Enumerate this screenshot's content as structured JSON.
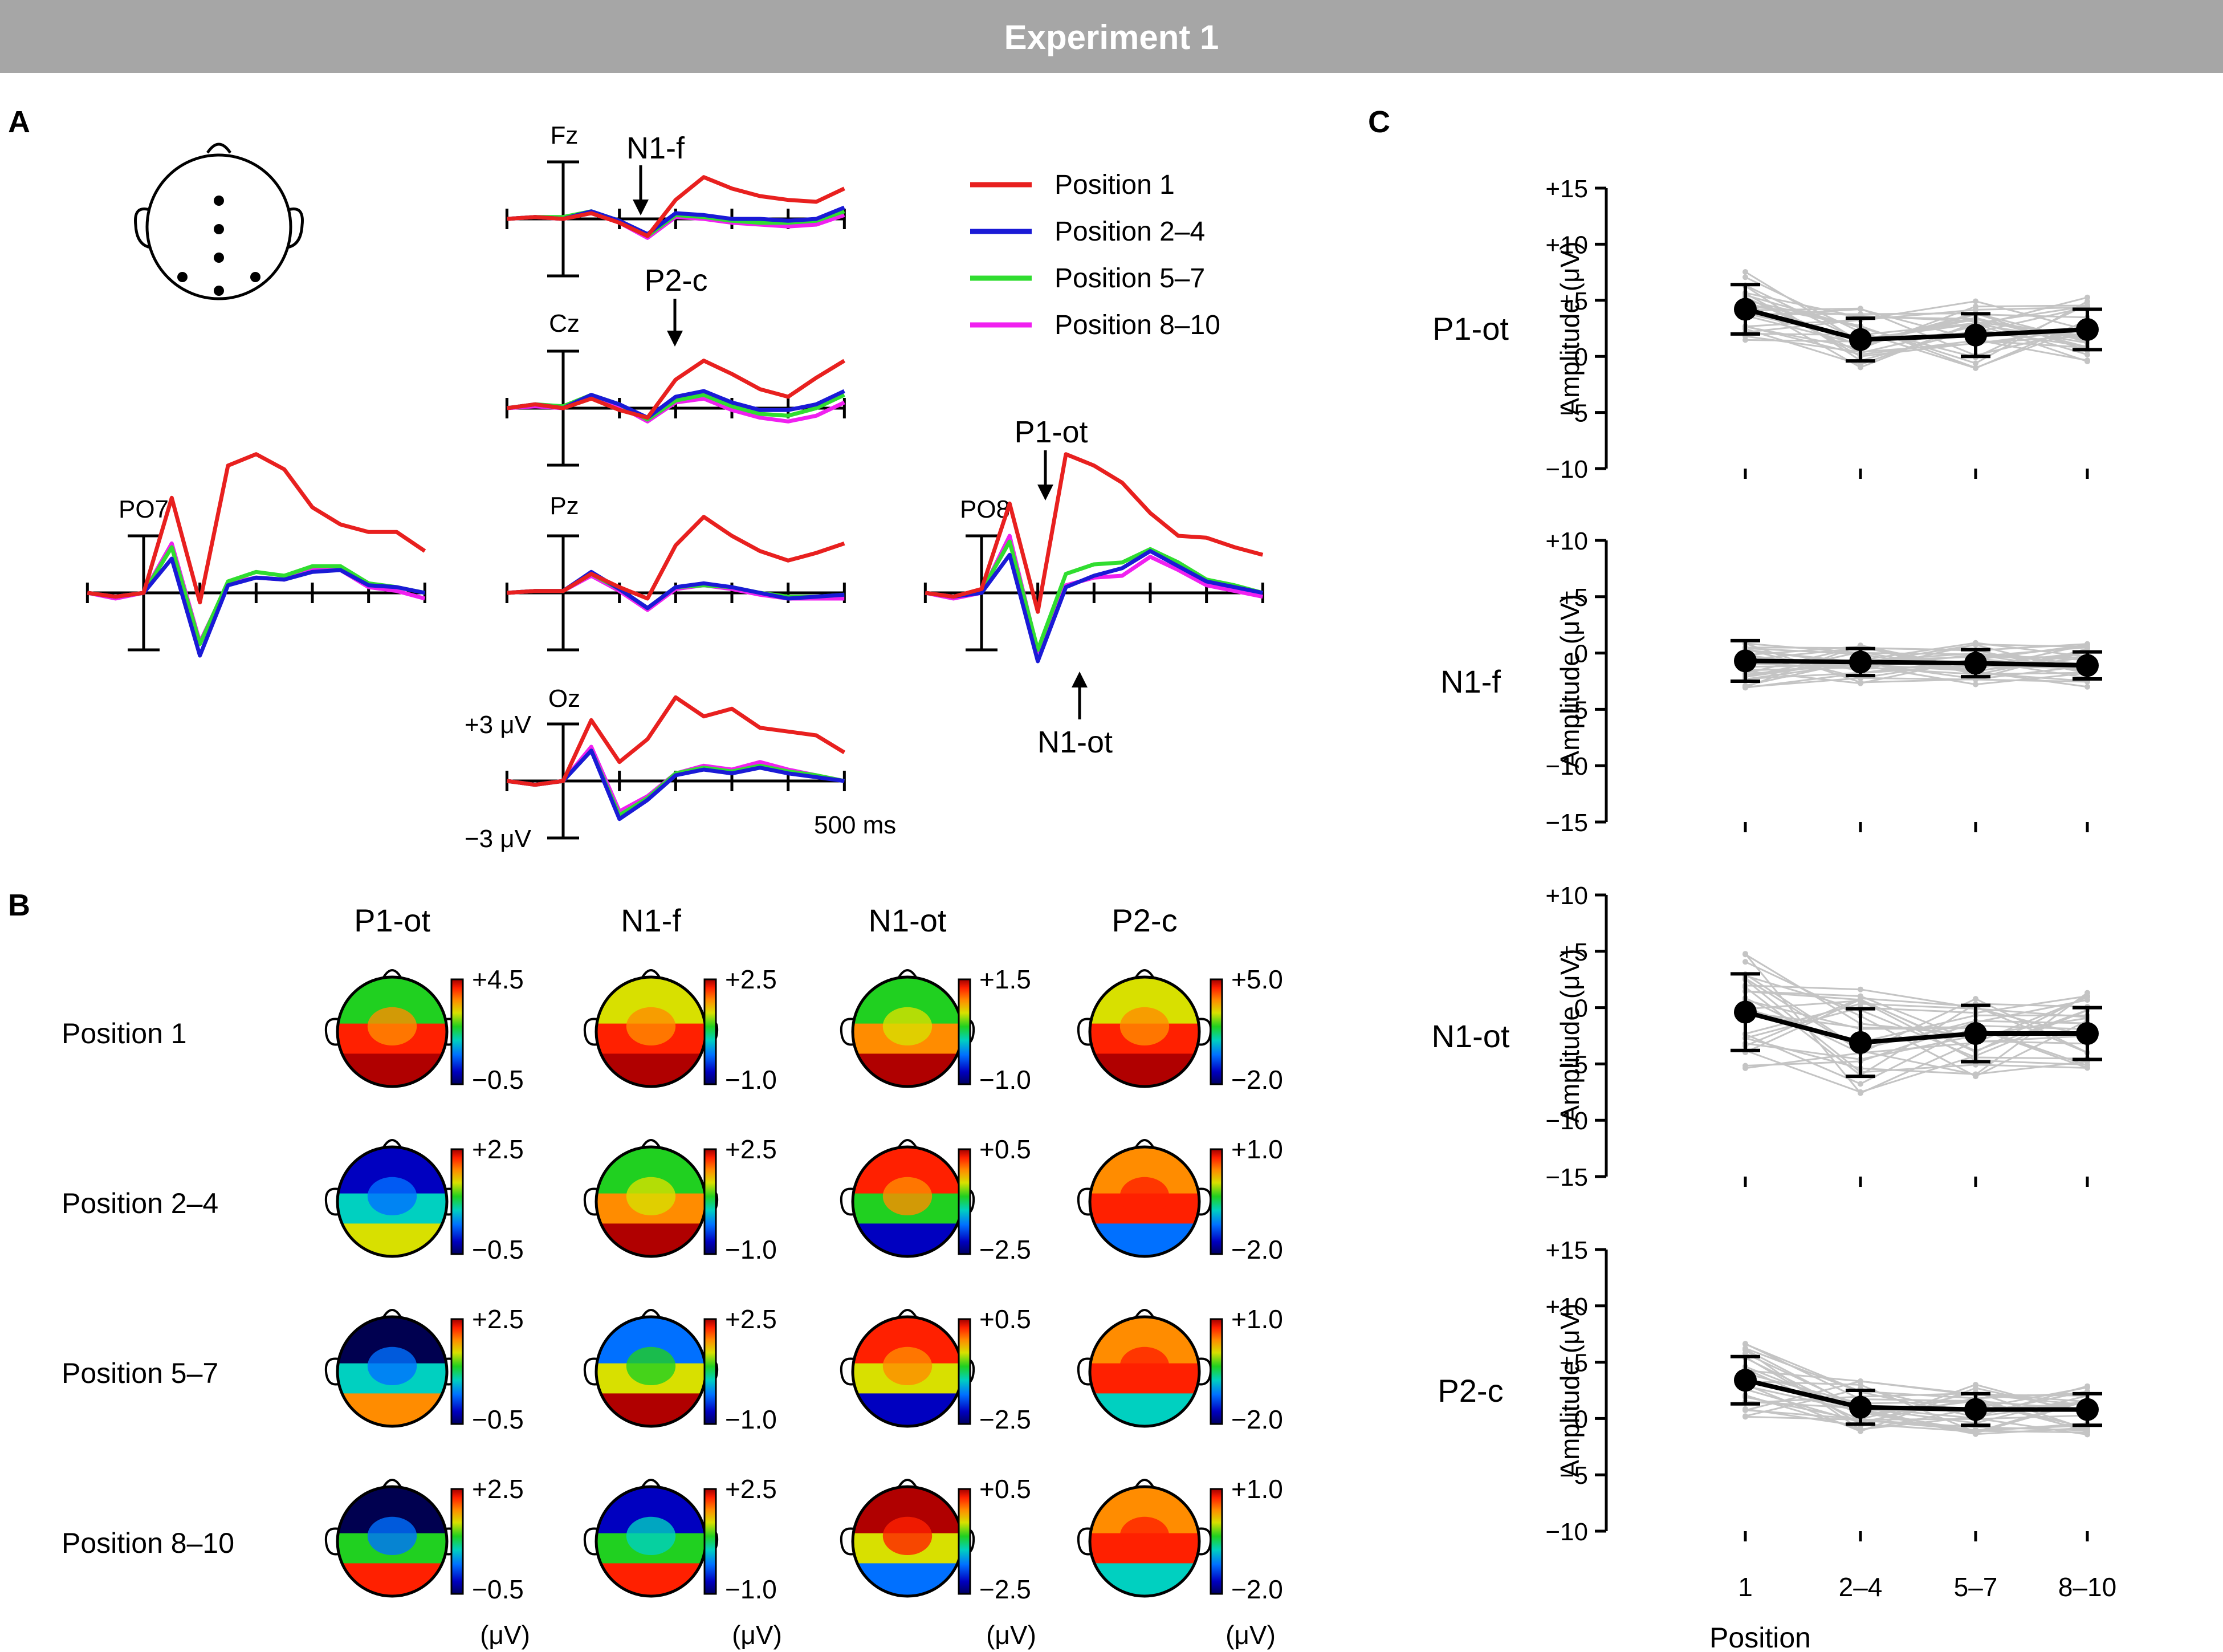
{
  "header": {
    "title": "Experiment 1",
    "bg": "#a6a6a6"
  },
  "panels": {
    "a": "A",
    "b": "B",
    "c": "C"
  },
  "colors": {
    "p1": "#e8201f",
    "p2_4": "#1a1ad6",
    "p5_7": "#30dd30",
    "p8_10": "#f020f0",
    "gray": "#c4c4c4"
  },
  "chart_data": [
    {
      "type": "line",
      "id": "erp-waveforms",
      "title": "A",
      "legend": [
        "Position 1",
        "Position 2–4",
        "Position 5–7",
        "Position 8–10"
      ],
      "legend_position": "top-right",
      "electrodes": [
        "Fz",
        "Cz",
        "Pz",
        "Oz",
        "PO7",
        "PO8"
      ],
      "scale": {
        "amplitude_pos": "+3 μV",
        "amplitude_neg": "−3 μV",
        "time": "500 ms"
      },
      "component_labels": [
        "N1-f",
        "P2-c",
        "P1-ot",
        "N1-ot"
      ],
      "x": [
        -100,
        -50,
        0,
        50,
        100,
        150,
        200,
        250,
        300,
        350,
        400,
        450,
        500
      ],
      "series": {
        "Fz": [
          {
            "name": "Position 1",
            "values": [
              0,
              0.1,
              0,
              0.3,
              -0.2,
              -0.9,
              1.0,
              2.2,
              1.6,
              1.2,
              1.0,
              0.9,
              1.6
            ]
          },
          {
            "name": "Position 2–4",
            "values": [
              0,
              0.1,
              0,
              0.4,
              -0.1,
              -0.8,
              0.3,
              0.2,
              0,
              0,
              -0.1,
              0,
              0.6
            ]
          },
          {
            "name": "Position 5–7",
            "values": [
              0,
              0.1,
              0.1,
              0.4,
              -0.1,
              -0.9,
              0.2,
              0.1,
              -0.1,
              -0.2,
              -0.2,
              -0.1,
              0.4
            ]
          },
          {
            "name": "Position 8–10",
            "values": [
              0,
              0.1,
              0,
              0.3,
              -0.2,
              -1.0,
              0.1,
              0,
              -0.2,
              -0.3,
              -0.4,
              -0.3,
              0.2
            ]
          }
        ],
        "Cz": [
          {
            "name": "Position 1",
            "values": [
              0,
              0.2,
              0,
              0.5,
              -0.1,
              -0.5,
              1.5,
              2.5,
              1.8,
              1.0,
              0.6,
              1.6,
              2.5
            ]
          },
          {
            "name": "Position 2–4",
            "values": [
              0,
              0.2,
              0,
              0.7,
              0.2,
              -0.5,
              0.6,
              0.9,
              0.3,
              -0.1,
              -0.1,
              0.2,
              0.9
            ]
          },
          {
            "name": "Position 5–7",
            "values": [
              0,
              0.2,
              0.1,
              0.7,
              0.2,
              -0.6,
              0.4,
              0.7,
              0.1,
              -0.3,
              -0.4,
              0,
              0.7
            ]
          },
          {
            "name": "Position 8–10",
            "values": [
              0,
              0.1,
              0,
              0.6,
              0.1,
              -0.7,
              0.3,
              0.5,
              -0.1,
              -0.5,
              -0.7,
              -0.4,
              0.3
            ]
          }
        ],
        "Pz": [
          {
            "name": "Position 1",
            "values": [
              0,
              0.1,
              0.1,
              1.0,
              0.3,
              -0.3,
              2.5,
              4.0,
              3.0,
              2.2,
              1.7,
              2.1,
              2.6
            ]
          },
          {
            "name": "Position 2–4",
            "values": [
              0,
              0.1,
              0.1,
              1.1,
              0.2,
              -0.8,
              0.3,
              0.5,
              0.3,
              0,
              -0.3,
              -0.2,
              -0.1
            ]
          },
          {
            "name": "Position 5–7",
            "values": [
              0,
              0.1,
              0.1,
              1.0,
              0.2,
              -0.8,
              0.3,
              0.4,
              0.3,
              0,
              -0.2,
              -0.2,
              -0.1
            ]
          },
          {
            "name": "Position 8–10",
            "values": [
              0,
              0.1,
              0.1,
              0.9,
              0.1,
              -0.9,
              0.2,
              0.4,
              0.2,
              -0.1,
              -0.3,
              -0.3,
              -0.3
            ]
          }
        ],
        "Oz": [
          {
            "name": "Position 1",
            "values": [
              0,
              -0.2,
              0,
              3.2,
              1.0,
              2.2,
              4.4,
              3.4,
              3.8,
              2.8,
              2.6,
              2.4,
              1.5
            ]
          },
          {
            "name": "Position 2–4",
            "values": [
              0,
              -0.2,
              0,
              1.6,
              -2.0,
              -1.0,
              0.3,
              0.6,
              0.4,
              0.7,
              0.4,
              0.2,
              0
            ]
          },
          {
            "name": "Position 5–7",
            "values": [
              0,
              -0.2,
              0,
              1.6,
              -1.8,
              -0.9,
              0.4,
              0.7,
              0.5,
              0.8,
              0.5,
              0.3,
              0
            ]
          },
          {
            "name": "Position 8–10",
            "values": [
              0,
              -0.2,
              0,
              1.8,
              -1.6,
              -0.8,
              0.4,
              0.8,
              0.6,
              1.0,
              0.6,
              0.3,
              0
            ]
          }
        ],
        "PO7": [
          {
            "name": "Position 1",
            "values": [
              0,
              -0.2,
              0,
              5.0,
              -0.5,
              6.7,
              7.3,
              6.5,
              4.5,
              3.6,
              3.2,
              3.2,
              2.2
            ]
          },
          {
            "name": "Position 2–4",
            "values": [
              0,
              -0.2,
              0,
              1.8,
              -3.3,
              0.4,
              0.8,
              0.7,
              1.1,
              1.2,
              0.4,
              0.3,
              0
            ]
          },
          {
            "name": "Position 5–7",
            "values": [
              0,
              -0.2,
              0,
              2.4,
              -2.7,
              0.6,
              1.1,
              0.9,
              1.4,
              1.4,
              0.5,
              0.3,
              0
            ]
          },
          {
            "name": "Position 8–10",
            "values": [
              0,
              -0.3,
              0,
              2.6,
              -2.6,
              0.5,
              0.8,
              0.7,
              1.2,
              1.2,
              0.3,
              0.1,
              -0.3
            ]
          }
        ],
        "PO8": [
          {
            "name": "Position 1",
            "values": [
              0,
              -0.2,
              0.2,
              4.7,
              -1.0,
              7.3,
              6.7,
              5.8,
              4.2,
              3.0,
              2.9,
              2.4,
              2.0
            ]
          },
          {
            "name": "Position 2–4",
            "values": [
              0,
              -0.2,
              0,
              2.0,
              -3.6,
              0.3,
              0.9,
              1.3,
              2.2,
              1.4,
              0.6,
              0.3,
              0
            ]
          },
          {
            "name": "Position 5–7",
            "values": [
              0,
              -0.2,
              0.1,
              2.7,
              -3.0,
              1.0,
              1.5,
              1.6,
              2.3,
              1.6,
              0.7,
              0.4,
              0
            ]
          },
          {
            "name": "Position 8–10",
            "values": [
              0,
              -0.3,
              0,
              3.0,
              -3.1,
              0.4,
              0.8,
              0.9,
              1.9,
              1.2,
              0.4,
              0.1,
              -0.2
            ]
          }
        ]
      }
    },
    {
      "type": "heatmap",
      "id": "topographies",
      "title": "B",
      "columns": [
        "P1-ot",
        "N1-f",
        "N1-ot",
        "P2-c"
      ],
      "rows": [
        "Position 1",
        "Position 2–4",
        "Position 5–7",
        "Position 8–10"
      ],
      "unit": "(μV)",
      "color_limits": [
        [
          [
            "+4.5",
            "−0.5"
          ],
          [
            "+2.5",
            "−1.0"
          ],
          [
            "+1.5",
            "−1.0"
          ],
          [
            "+5.0",
            "−2.0"
          ]
        ],
        [
          [
            "+2.5",
            "−0.5"
          ],
          [
            "+2.5",
            "−1.0"
          ],
          [
            "+0.5",
            "−2.5"
          ],
          [
            "+1.0",
            "−2.0"
          ]
        ],
        [
          [
            "+2.5",
            "−0.5"
          ],
          [
            "+2.5",
            "−1.0"
          ],
          [
            "+0.5",
            "−2.5"
          ],
          [
            "+1.0",
            "−2.0"
          ]
        ],
        [
          [
            "+2.5",
            "−0.5"
          ],
          [
            "+2.5",
            "−1.0"
          ],
          [
            "+0.5",
            "−2.5"
          ],
          [
            "+1.0",
            "−2.0"
          ]
        ]
      ]
    },
    {
      "type": "line",
      "id": "amplitude-by-position",
      "title": "C",
      "categories": [
        "1",
        "2–4",
        "5–7",
        "8–10"
      ],
      "xlabel": "Position",
      "ylabel": "Amplitude (μV)",
      "subplots": [
        {
          "component": "P1-ot",
          "ylim": [
            -10,
            15
          ],
          "yticks": [
            "−10",
            "−5",
            "0",
            "+5",
            "+10",
            "+15"
          ],
          "mean": [
            4.2,
            1.5,
            1.9,
            2.4
          ],
          "sd": [
            2.2,
            1.9,
            1.9,
            1.8
          ]
        },
        {
          "component": "N1-f",
          "ylim": [
            -15,
            10
          ],
          "yticks": [
            "−15",
            "−10",
            "−5",
            "0",
            "+5",
            "+10"
          ],
          "mean": [
            -0.7,
            -0.8,
            -0.9,
            -1.1
          ],
          "sd": [
            1.8,
            1.2,
            1.2,
            1.2
          ]
        },
        {
          "component": "N1-ot",
          "ylim": [
            -15,
            10
          ],
          "yticks": [
            "−15",
            "−10",
            "−5",
            "0",
            "+5",
            "+10"
          ],
          "mean": [
            -0.4,
            -3.1,
            -2.3,
            -2.3
          ],
          "sd": [
            3.4,
            3.0,
            2.5,
            2.3
          ]
        },
        {
          "component": "P2-c",
          "ylim": [
            -10,
            15
          ],
          "yticks": [
            "−10",
            "−5",
            "0",
            "+5",
            "+10",
            "+15"
          ],
          "mean": [
            3.4,
            1.0,
            0.8,
            0.8
          ],
          "sd": [
            2.1,
            1.5,
            1.4,
            1.4
          ]
        }
      ]
    }
  ]
}
